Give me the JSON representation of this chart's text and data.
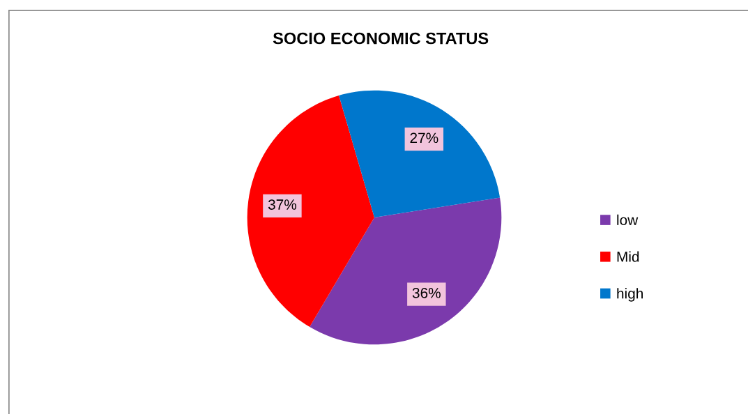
{
  "chart_data": {
    "type": "pie",
    "title": "SOCIO ECONOMIC STATUS",
    "categories": [
      "low",
      "Mid",
      "high"
    ],
    "values": [
      36,
      37,
      27
    ],
    "colors": [
      "#7b3aac",
      "#ff0000",
      "#0077cc"
    ],
    "value_labels": [
      "36%",
      "37%",
      "27%"
    ],
    "legend": "right"
  }
}
